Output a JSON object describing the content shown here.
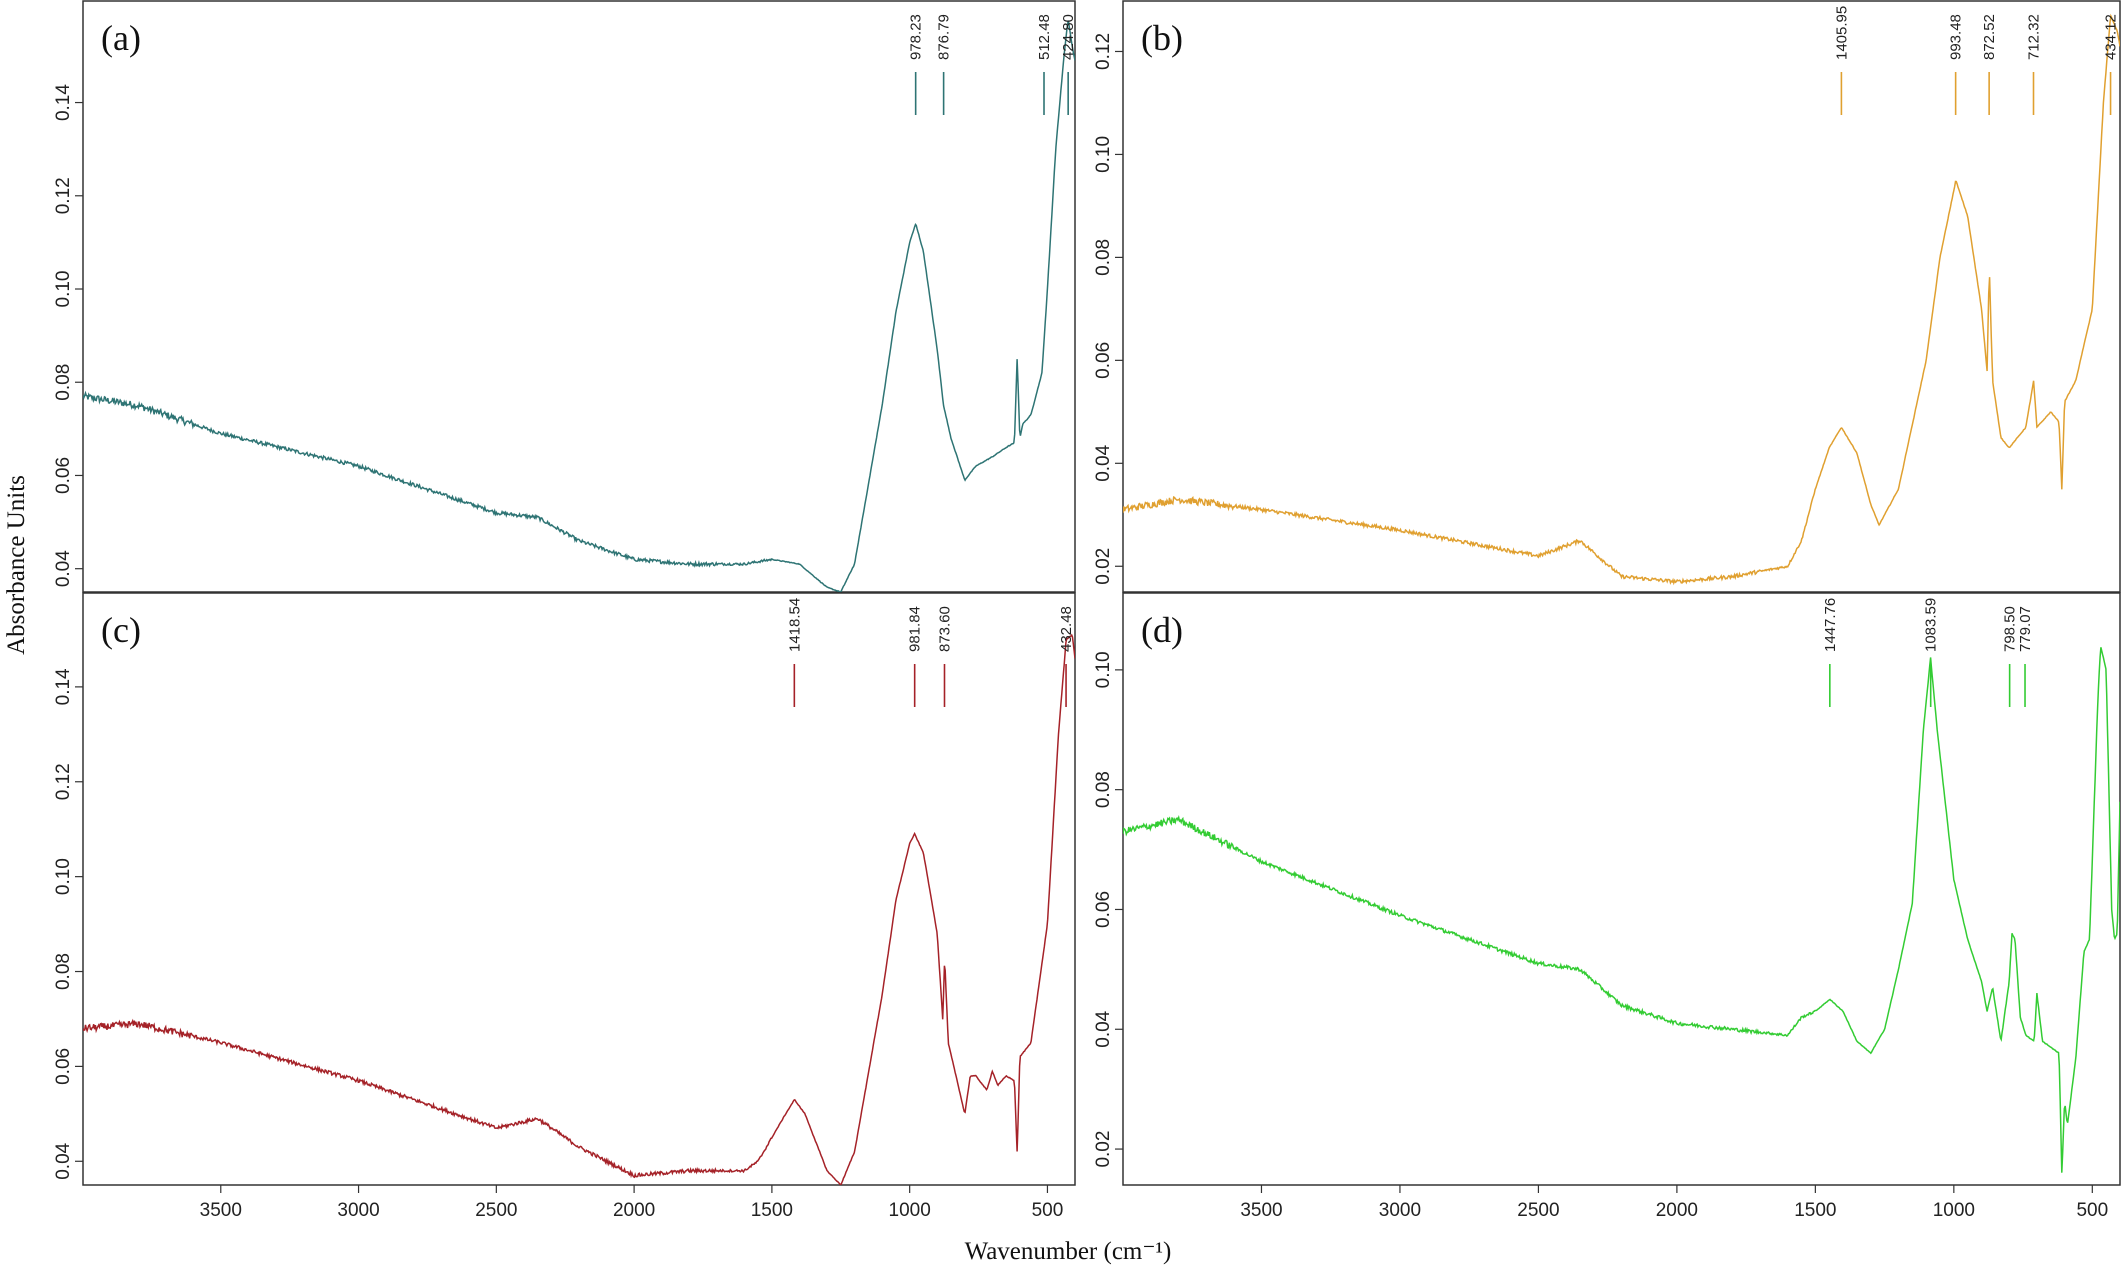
{
  "figure": {
    "ylabel": "Absorbance Units",
    "xlabel": "Wavenumber (cm⁻¹)"
  },
  "chart_data": [
    {
      "type": "line",
      "panel": "(a)",
      "xlim": [
        4000,
        400
      ],
      "ylim": [
        0.035,
        0.162
      ],
      "x_ticks": [
        "3500",
        "3000",
        "2500",
        "2000",
        "1500",
        "1000",
        "500"
      ],
      "y_ticks": [
        "0.04",
        "0.06",
        "0.08",
        "0.10",
        "0.12",
        "0.14"
      ],
      "color": "#2e7474",
      "peak_labels": [
        "978.23",
        "876.79",
        "512.48",
        "424.80"
      ],
      "series": [
        {
          "x": [
            4000,
            3800,
            3500,
            3000,
            2500,
            2350,
            2200,
            2000,
            1800,
            1600,
            1500,
            1400,
            1300,
            1250,
            1200,
            1100,
            1050,
            1000,
            978,
            950,
            900,
            877,
            850,
            800,
            760,
            700,
            650,
            620,
            610,
            600,
            590,
            560,
            520,
            500,
            470,
            440,
            425,
            410,
            400
          ],
          "y": [
            0.077,
            0.075,
            0.069,
            0.062,
            0.052,
            0.051,
            0.046,
            0.042,
            0.041,
            0.041,
            0.042,
            0.041,
            0.036,
            0.035,
            0.041,
            0.075,
            0.095,
            0.11,
            0.114,
            0.108,
            0.087,
            0.075,
            0.068,
            0.059,
            0.062,
            0.064,
            0.066,
            0.067,
            0.085,
            0.068,
            0.071,
            0.073,
            0.082,
            0.1,
            0.13,
            0.15,
            0.158,
            0.152,
            0.149
          ]
        }
      ]
    },
    {
      "type": "line",
      "panel": "(b)",
      "xlim": [
        4000,
        400
      ],
      "ylim": [
        0.015,
        0.13
      ],
      "x_ticks": [
        "3500",
        "3000",
        "2500",
        "2000",
        "1500",
        "1000",
        "500"
      ],
      "y_ticks": [
        "0.02",
        "0.04",
        "0.06",
        "0.08",
        "0.10",
        "0.12"
      ],
      "color": "#e0a030",
      "peak_labels": [
        "1405.95",
        "993.48",
        "872.52",
        "712.32",
        "434.12"
      ],
      "series": [
        {
          "x": [
            4000,
            3800,
            3500,
            3000,
            2500,
            2350,
            2200,
            2000,
            1800,
            1600,
            1550,
            1500,
            1450,
            1406,
            1350,
            1300,
            1270,
            1200,
            1100,
            1050,
            1000,
            993,
            950,
            900,
            880,
            872,
            860,
            830,
            800,
            740,
            712,
            700,
            650,
            620,
            610,
            600,
            560,
            500,
            460,
            434,
            410,
            400
          ],
          "y": [
            0.031,
            0.033,
            0.031,
            0.027,
            0.022,
            0.025,
            0.018,
            0.017,
            0.018,
            0.02,
            0.025,
            0.035,
            0.043,
            0.047,
            0.042,
            0.032,
            0.028,
            0.035,
            0.06,
            0.08,
            0.093,
            0.095,
            0.088,
            0.07,
            0.058,
            0.078,
            0.056,
            0.045,
            0.043,
            0.047,
            0.056,
            0.047,
            0.05,
            0.048,
            0.035,
            0.052,
            0.056,
            0.07,
            0.11,
            0.127,
            0.124,
            0.121
          ]
        }
      ]
    },
    {
      "type": "line",
      "panel": "(c)",
      "xlim": [
        4000,
        400
      ],
      "ylim": [
        0.035,
        0.16
      ],
      "x_ticks": [
        "3500",
        "3000",
        "2500",
        "2000",
        "1500",
        "1000",
        "500"
      ],
      "y_ticks": [
        "0.04",
        "0.06",
        "0.08",
        "0.10",
        "0.12",
        "0.14"
      ],
      "color": "#a52228",
      "peak_labels": [
        "1418.54",
        "981.84",
        "873.60",
        "432.48"
      ],
      "series": [
        {
          "x": [
            4000,
            3800,
            3500,
            3000,
            2500,
            2350,
            2200,
            2000,
            1800,
            1600,
            1550,
            1500,
            1450,
            1418,
            1380,
            1300,
            1250,
            1200,
            1100,
            1050,
            1000,
            982,
            950,
            900,
            880,
            873,
            860,
            820,
            800,
            780,
            760,
            720,
            700,
            680,
            650,
            620,
            610,
            600,
            560,
            500,
            460,
            432,
            410,
            400
          ],
          "y": [
            0.068,
            0.069,
            0.065,
            0.057,
            0.047,
            0.049,
            0.043,
            0.037,
            0.038,
            0.038,
            0.04,
            0.045,
            0.05,
            0.053,
            0.05,
            0.038,
            0.035,
            0.042,
            0.075,
            0.095,
            0.107,
            0.109,
            0.105,
            0.088,
            0.07,
            0.083,
            0.065,
            0.055,
            0.05,
            0.058,
            0.058,
            0.055,
            0.059,
            0.056,
            0.058,
            0.057,
            0.042,
            0.062,
            0.065,
            0.09,
            0.13,
            0.15,
            0.151,
            0.146
          ]
        }
      ]
    },
    {
      "type": "line",
      "panel": "(d)",
      "xlim": [
        4000,
        400
      ],
      "ylim": [
        0.014,
        0.113
      ],
      "x_ticks": [
        "3500",
        "3000",
        "2500",
        "2000",
        "1500",
        "1000",
        "500"
      ],
      "y_ticks": [
        "0.02",
        "0.04",
        "0.06",
        "0.08",
        "0.10"
      ],
      "color": "#33cc33",
      "peak_labels": [
        "1447.76",
        "1083.59",
        "798.50",
        "779.07"
      ],
      "series": [
        {
          "x": [
            4000,
            3800,
            3500,
            3000,
            2500,
            2350,
            2200,
            2000,
            1800,
            1600,
            1550,
            1500,
            1448,
            1400,
            1350,
            1300,
            1250,
            1200,
            1150,
            1110,
            1084,
            1060,
            1000,
            950,
            900,
            880,
            860,
            830,
            800,
            790,
            779,
            760,
            740,
            710,
            700,
            680,
            650,
            620,
            610,
            600,
            590,
            560,
            530,
            510,
            480,
            470,
            450,
            430,
            420,
            410,
            400
          ],
          "y": [
            0.073,
            0.075,
            0.068,
            0.059,
            0.051,
            0.05,
            0.044,
            0.041,
            0.04,
            0.039,
            0.042,
            0.043,
            0.045,
            0.043,
            0.038,
            0.036,
            0.04,
            0.05,
            0.061,
            0.09,
            0.102,
            0.09,
            0.065,
            0.055,
            0.048,
            0.043,
            0.047,
            0.038,
            0.048,
            0.056,
            0.055,
            0.042,
            0.039,
            0.038,
            0.046,
            0.038,
            0.037,
            0.036,
            0.016,
            0.028,
            0.024,
            0.035,
            0.053,
            0.055,
            0.095,
            0.104,
            0.1,
            0.06,
            0.055,
            0.056,
            0.078
          ]
        }
      ]
    }
  ]
}
